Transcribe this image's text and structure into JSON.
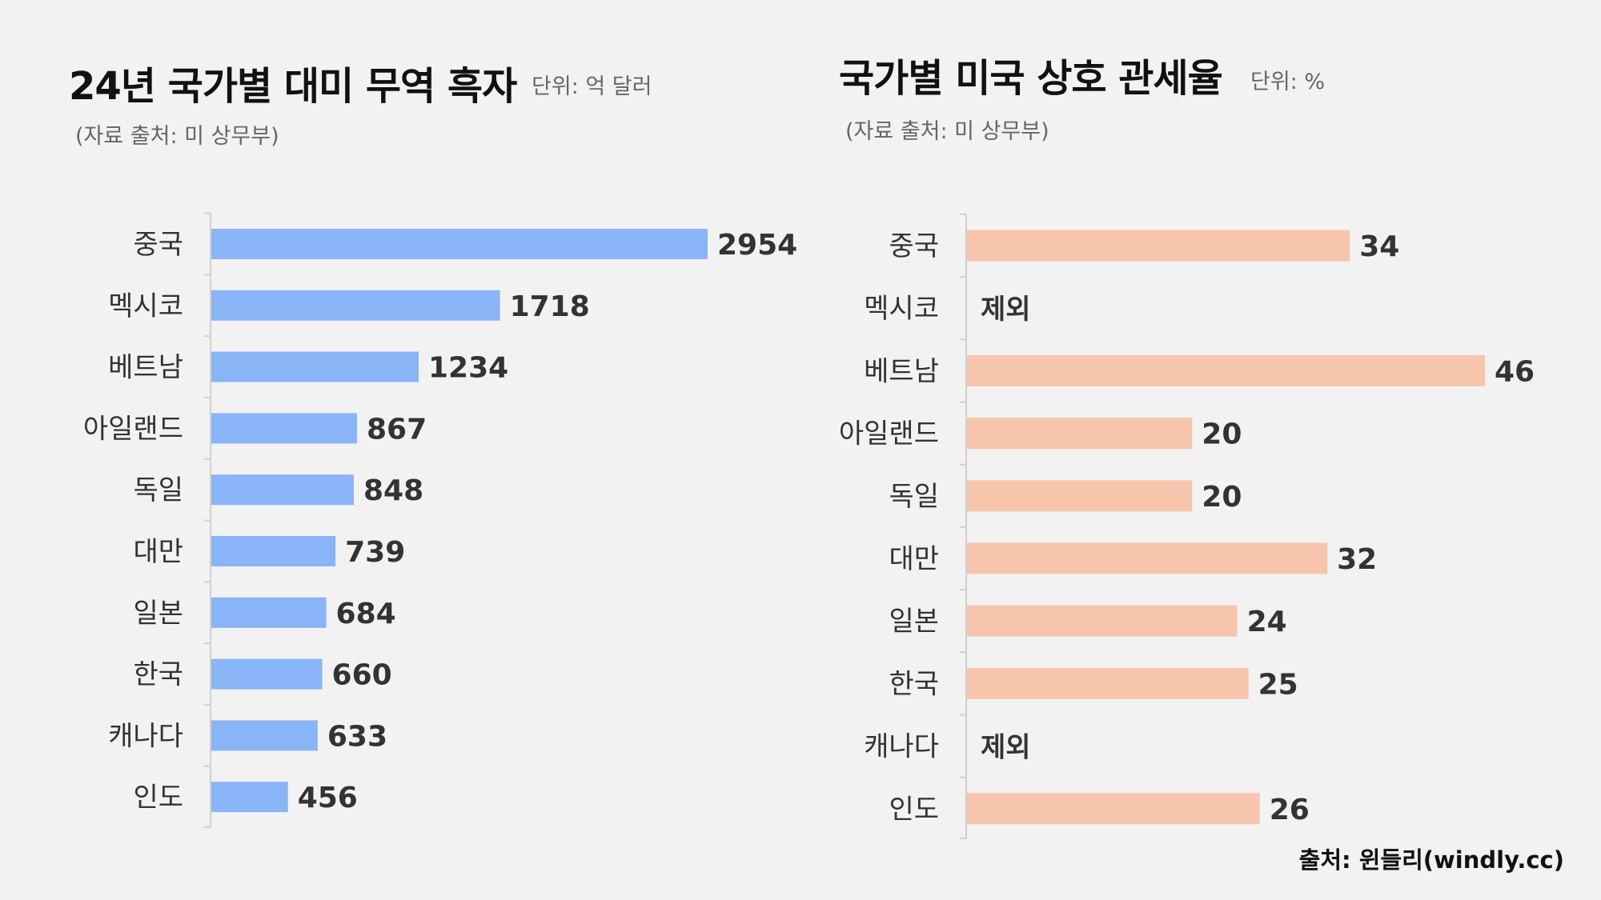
{
  "footer": "출처: 윈들리(windly.cc)",
  "chart_data": [
    {
      "type": "bar",
      "orientation": "horizontal",
      "title": "24년 국가별 대미 무역 흑자",
      "unit": "단위: 억 달러",
      "subtitle": "(자료 출처: 미 상무부)",
      "categories": [
        "중국",
        "멕시코",
        "베트남",
        "아일랜드",
        "독일",
        "대만",
        "일본",
        "한국",
        "캐나다",
        "인도"
      ],
      "values": [
        2954,
        1718,
        1234,
        867,
        848,
        739,
        684,
        660,
        633,
        456
      ],
      "value_labels": [
        "2954",
        "1718",
        "1234",
        "867",
        "848",
        "739",
        "684",
        "660",
        "633",
        "456"
      ],
      "color": "#8ab4f8",
      "grid": false,
      "legend": "none"
    },
    {
      "type": "bar",
      "orientation": "horizontal",
      "title": "국가별 미국 상호 관세율",
      "unit": "단위: %",
      "subtitle": "(자료 출처: 미 상무부)",
      "categories": [
        "중국",
        "멕시코",
        "베트남",
        "아일랜드",
        "독일",
        "대만",
        "일본",
        "한국",
        "캐나다",
        "인도"
      ],
      "values": [
        34,
        null,
        46,
        20,
        20,
        32,
        24,
        25,
        null,
        26
      ],
      "value_labels": [
        "34",
        "제외",
        "46",
        "20",
        "20",
        "32",
        "24",
        "25",
        "제외",
        "26"
      ],
      "color": "#f7c5ab",
      "grid": false,
      "legend": "none"
    }
  ]
}
